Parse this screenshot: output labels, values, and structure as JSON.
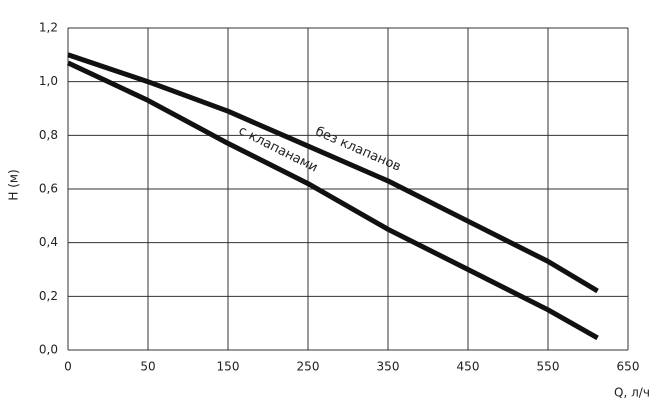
{
  "chart_data": {
    "type": "line",
    "ylabel": "H (м)",
    "xlabel": "Q, л/ч",
    "x": [
      0,
      50,
      150,
      250,
      350,
      450,
      550,
      612
    ],
    "series": [
      {
        "name": "без клапанов",
        "color": "#111111",
        "values": [
          1.1,
          1.0,
          0.89,
          0.76,
          0.63,
          0.48,
          0.33,
          0.22
        ]
      },
      {
        "name": "с клапанами",
        "color": "#111111",
        "values": [
          1.07,
          0.93,
          0.77,
          0.62,
          0.45,
          0.3,
          0.15,
          0.045
        ]
      }
    ],
    "xlim": [
      0,
      650
    ],
    "xticks": [
      0,
      50,
      150,
      250,
      350,
      450,
      550,
      650
    ],
    "ylim": [
      0,
      1.2
    ],
    "yticks": [
      {
        "value": 0,
        "label": "0,0"
      },
      {
        "value": 0.2,
        "label": "0,2"
      },
      {
        "value": 0.4,
        "label": "0,4"
      },
      {
        "value": 0.6,
        "label": "0,6"
      },
      {
        "value": 0.8,
        "label": "0,8"
      },
      {
        "value": 1.0,
        "label": "1,0"
      },
      {
        "value": 1.2,
        "label": "1,2"
      }
    ],
    "grid": true
  }
}
